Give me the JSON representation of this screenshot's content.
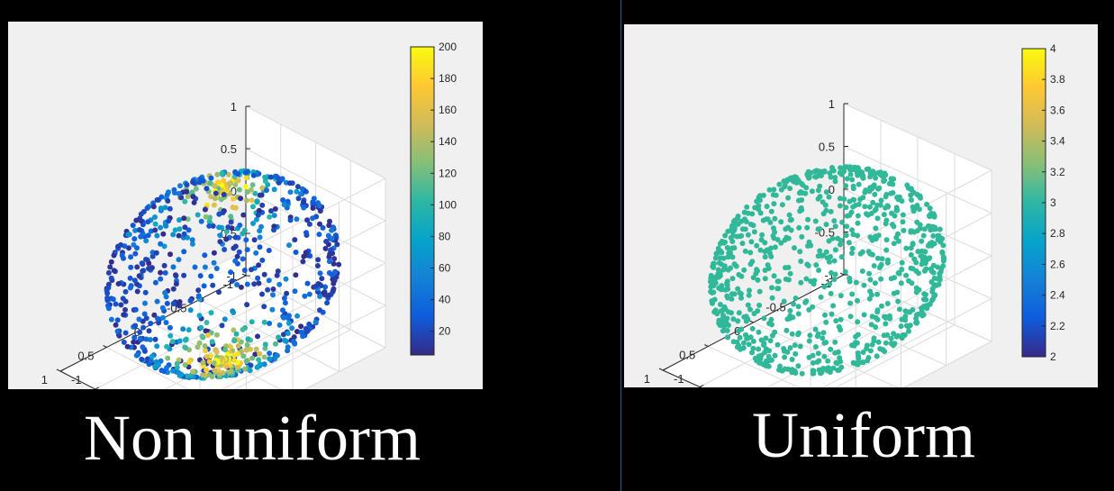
{
  "captions": {
    "left": "Non uniform",
    "right": "Uniform"
  },
  "colors": {
    "background": "#000000",
    "panel_bg": "#f0f0f0",
    "axes_bg": "#ffffff",
    "grid": "#dcdcdc",
    "uniform_point": "#31b899",
    "parula_map": [
      "#352a87",
      "#0f5cdd",
      "#1481d6",
      "#06a4ca",
      "#2eb7a4",
      "#87bf77",
      "#d1bb59",
      "#fec832",
      "#f9fb0e"
    ]
  },
  "chart_data": [
    {
      "type": "scatter3d",
      "caption": "Non uniform",
      "title": "",
      "xlabel": "",
      "ylabel": "",
      "zlabel": "",
      "xlim": [
        -1,
        1
      ],
      "ylim": [
        -1,
        1
      ],
      "zlim": [
        -1,
        1
      ],
      "x_ticks": [
        "-1",
        "-0.5",
        "0",
        "0.5",
        "1"
      ],
      "y_ticks": [
        "-1",
        "-0.5",
        "0",
        "0.5",
        "1"
      ],
      "z_ticks": [
        "-1",
        "-0.5",
        "0",
        "0.5",
        "1"
      ],
      "grid": true,
      "point_count_approx": 900,
      "distribution": "points on unit sphere surface, denser near poles",
      "color_by": "local density",
      "colorbar": {
        "position": "right",
        "range": [
          5,
          200
        ],
        "ticks": [
          "20",
          "40",
          "60",
          "80",
          "100",
          "120",
          "140",
          "160",
          "180",
          "200"
        ]
      }
    },
    {
      "type": "scatter3d",
      "caption": "Uniform",
      "title": "",
      "xlabel": "",
      "ylabel": "",
      "zlabel": "",
      "xlim": [
        -1,
        1
      ],
      "ylim": [
        -1,
        1
      ],
      "zlim": [
        -1,
        1
      ],
      "x_ticks": [
        "-1",
        "-0.5",
        "0",
        "0.5",
        "1"
      ],
      "y_ticks": [
        "-1",
        "-0.5",
        "0",
        "0.5",
        "1"
      ],
      "z_ticks": [
        "-1",
        "-0.5",
        "0",
        "0.5",
        "1"
      ],
      "grid": true,
      "point_count_approx": 900,
      "distribution": "points uniformly distributed on unit sphere surface",
      "color_value": 3,
      "colorbar": {
        "position": "right",
        "range": [
          2,
          4
        ],
        "ticks": [
          "2",
          "2.2",
          "2.4",
          "2.6",
          "2.8",
          "3",
          "3.2",
          "3.4",
          "3.6",
          "3.8",
          "4"
        ]
      }
    }
  ]
}
